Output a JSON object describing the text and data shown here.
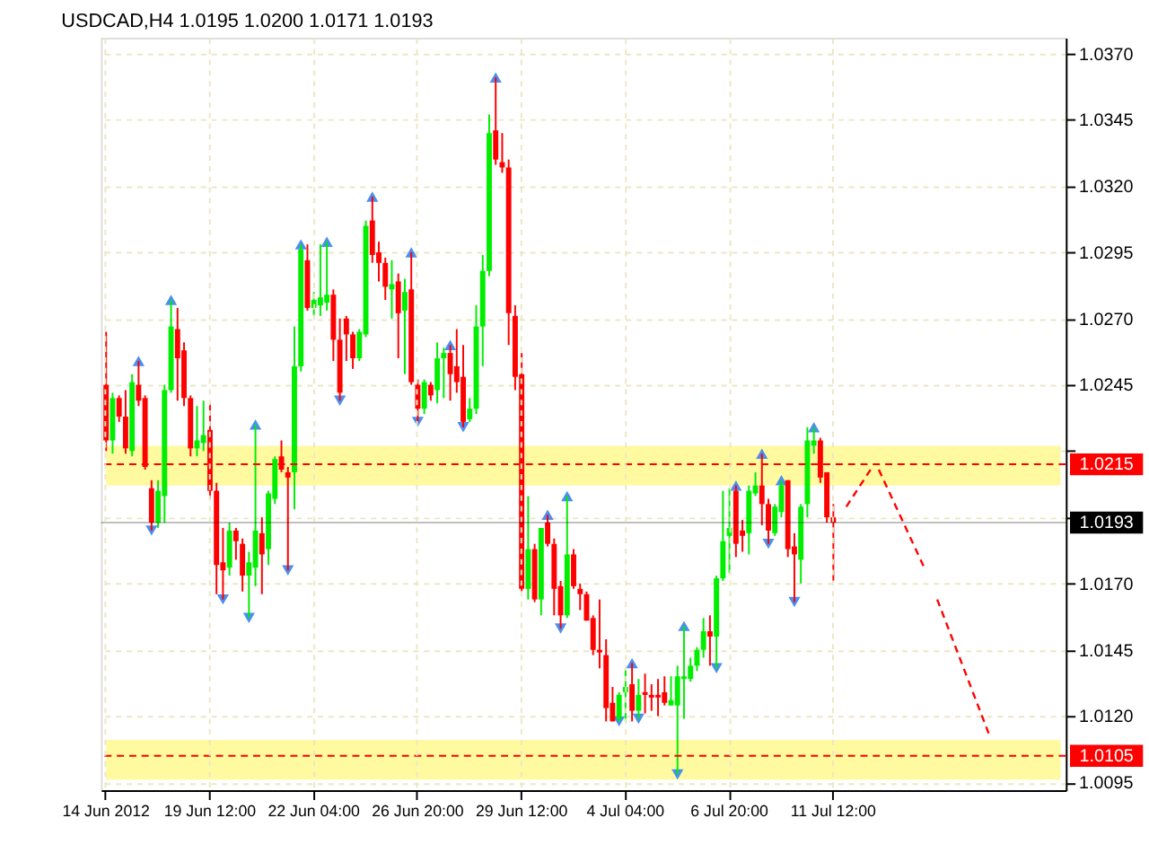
{
  "chart_data": {
    "type": "candlestick",
    "title": "USDCAD,H4  1.0195 1.0200 1.0171 1.0193",
    "categories": [
      "14 Jun 2012",
      null,
      null,
      null,
      null,
      null,
      null,
      null,
      null,
      null,
      null,
      null,
      null,
      null,
      null,
      null,
      "19 Jun 12:00",
      null,
      null,
      null,
      null,
      null,
      null,
      null,
      null,
      null,
      null,
      null,
      null,
      null,
      null,
      null,
      "22 Jun 04:00",
      null,
      null,
      null,
      null,
      null,
      null,
      null,
      null,
      null,
      null,
      null,
      null,
      null,
      null,
      null,
      "26 Jun 20:00",
      null,
      null,
      null,
      null,
      null,
      null,
      null,
      null,
      null,
      null,
      null,
      null,
      null,
      null,
      null,
      "29 Jun 12:00",
      null,
      null,
      null,
      null,
      null,
      null,
      null,
      null,
      null,
      null,
      null,
      null,
      null,
      null,
      null,
      "4 Jul 04:00",
      null,
      null,
      null,
      null,
      null,
      null,
      null,
      null,
      null,
      null,
      null,
      null,
      null,
      null,
      null,
      "6 Jul 20:00",
      null,
      null,
      null,
      null,
      null,
      null,
      null,
      null,
      null,
      null,
      null,
      null,
      null,
      null,
      null,
      "11 Jul 12:00",
      null,
      null,
      null,
      null,
      null,
      null,
      null,
      null,
      null,
      null,
      null,
      null,
      null,
      null,
      null,
      null,
      null,
      null,
      null,
      null,
      null,
      null,
      null,
      null,
      null,
      null,
      null,
      null,
      null,
      null,
      null,
      null,
      null,
      null,
      null
    ],
    "ohlc": [
      [
        1.0245,
        1.0265,
        1.022,
        1.0224
      ],
      [
        1.0224,
        1.0242,
        1.0219,
        1.024
      ],
      [
        1.024,
        1.0241,
        1.0231,
        1.0233
      ],
      [
        1.0233,
        1.0243,
        1.0219,
        1.0221
      ],
      [
        1.022,
        1.0249,
        1.0218,
        1.0246
      ],
      [
        1.0245,
        1.0254,
        1.0237,
        1.0239
      ],
      [
        1.024,
        1.0241,
        1.0213,
        1.0214
      ],
      [
        1.0206,
        1.0209,
        1.019,
        1.0193
      ],
      [
        1.0193,
        1.0209,
        1.0191,
        1.0205
      ],
      [
        1.0203,
        1.0245,
        1.0193,
        1.0243
      ],
      [
        1.0243,
        1.0277,
        1.0242,
        1.0267
      ],
      [
        1.0266,
        1.0274,
        1.0239,
        1.0255
      ],
      [
        1.0258,
        1.0261,
        1.0237,
        1.024
      ],
      [
        1.024,
        1.0241,
        1.0218,
        1.0221
      ],
      [
        1.0221,
        1.0237,
        1.0218,
        1.0224
      ],
      [
        1.0223,
        1.0239,
        1.022,
        1.0226
      ],
      [
        1.0228,
        1.0238,
        1.0202,
        1.0205
      ],
      [
        1.0205,
        1.0208,
        1.0166,
        1.0177
      ],
      [
        1.0178,
        1.0191,
        1.0164,
        1.0175
      ],
      [
        1.0176,
        1.0193,
        1.0173,
        1.019
      ],
      [
        1.019,
        1.0191,
        1.0179,
        1.0186
      ],
      [
        1.0185,
        1.0187,
        1.0167,
        1.0173
      ],
      [
        1.0173,
        1.0182,
        1.0157,
        1.0178
      ],
      [
        1.0176,
        1.023,
        1.0169,
        1.019
      ],
      [
        1.0189,
        1.0195,
        1.0166,
        1.0181
      ],
      [
        1.0183,
        1.0205,
        1.0177,
        1.0204
      ],
      [
        1.0202,
        1.0218,
        1.02,
        1.0217
      ],
      [
        1.0218,
        1.0224,
        1.0212,
        1.0213
      ],
      [
        1.0212,
        1.0214,
        1.0175,
        1.021
      ],
      [
        1.0212,
        1.0267,
        1.0198,
        1.0252
      ],
      [
        1.0252,
        1.0298,
        1.025,
        1.0296
      ],
      [
        1.0292,
        1.0298,
        1.0273,
        1.0274
      ],
      [
        1.0274,
        1.028,
        1.0271,
        1.0277
      ],
      [
        1.0275,
        1.0298,
        1.0271,
        1.0278
      ],
      [
        1.0276,
        1.0299,
        1.0273,
        1.0279
      ],
      [
        1.0279,
        1.0281,
        1.0254,
        1.0262
      ],
      [
        1.0262,
        1.027,
        1.0239,
        1.0242
      ],
      [
        1.027,
        1.0271,
        1.0254,
        1.0264
      ],
      [
        1.0264,
        1.0265,
        1.0251,
        1.0255
      ],
      [
        1.0255,
        1.0266,
        1.0254,
        1.0265
      ],
      [
        1.0264,
        1.0307,
        1.0263,
        1.0305
      ],
      [
        1.0307,
        1.0316,
        1.0291,
        1.0294
      ],
      [
        1.0295,
        1.0299,
        1.0284,
        1.0291
      ],
      [
        1.0291,
        1.0293,
        1.0277,
        1.0282
      ],
      [
        1.0281,
        1.0292,
        1.027,
        1.0283
      ],
      [
        1.0284,
        1.0287,
        1.0255,
        1.0272
      ],
      [
        1.0273,
        1.0285,
        1.0249,
        1.028
      ],
      [
        1.0281,
        1.0295,
        1.0245,
        1.0246
      ],
      [
        1.0245,
        1.0247,
        1.0231,
        1.0236
      ],
      [
        1.0236,
        1.0247,
        1.0234,
        1.0246
      ],
      [
        1.0245,
        1.0246,
        1.0239,
        1.0241
      ],
      [
        1.0243,
        1.0261,
        1.0238,
        1.0255
      ],
      [
        1.0255,
        1.0259,
        1.024,
        1.0257
      ],
      [
        1.0257,
        1.026,
        1.0239,
        1.0249
      ],
      [
        1.0252,
        1.0266,
        1.0242,
        1.0246
      ],
      [
        1.0248,
        1.026,
        1.0229,
        1.0231
      ],
      [
        1.0232,
        1.024,
        1.0231,
        1.0236
      ],
      [
        1.0236,
        1.0275,
        1.0234,
        1.0267
      ],
      [
        1.0267,
        1.0294,
        1.0252,
        1.0288
      ],
      [
        1.0288,
        1.0347,
        1.0286,
        1.034
      ],
      [
        1.0341,
        1.0361,
        1.0328,
        1.033
      ],
      [
        1.0329,
        1.034,
        1.0325,
        1.0327
      ],
      [
        1.0327,
        1.033,
        1.026,
        1.0272
      ],
      [
        1.0271,
        1.0275,
        1.0243,
        1.0248
      ],
      [
        1.0249,
        1.0257,
        1.0167,
        1.0168
      ],
      [
        1.0168,
        1.0203,
        1.0164,
        1.0183
      ],
      [
        1.0183,
        1.0185,
        1.0163,
        1.0164
      ],
      [
        1.0164,
        1.0191,
        1.0158,
        1.0191
      ],
      [
        1.0193,
        1.0196,
        1.0184,
        1.0185
      ],
      [
        1.0185,
        1.0187,
        1.0158,
        1.0168
      ],
      [
        1.0169,
        1.0171,
        1.0153,
        1.0158
      ],
      [
        1.0158,
        1.0203,
        1.0157,
        1.0181
      ],
      [
        1.0181,
        1.0183,
        1.0168,
        1.0169
      ],
      [
        1.0168,
        1.017,
        1.016,
        1.0166
      ],
      [
        1.0166,
        1.0167,
        1.0156,
        1.0156
      ],
      [
        1.0157,
        1.0158,
        1.0143,
        1.0145
      ],
      [
        1.0145,
        1.0164,
        1.0138,
        1.0144
      ],
      [
        1.0143,
        1.0149,
        1.0118,
        1.0123
      ],
      [
        1.0125,
        1.0131,
        1.0118,
        1.0118
      ],
      [
        1.0119,
        1.0129,
        1.0118,
        1.0128
      ],
      [
        1.0129,
        1.0138,
        1.0118,
        1.0131
      ],
      [
        1.0132,
        1.014,
        1.0118,
        1.0122
      ],
      [
        1.0122,
        1.0134,
        1.0119,
        1.0128
      ],
      [
        1.0129,
        1.0136,
        1.0121,
        1.0128
      ],
      [
        1.0128,
        1.0132,
        1.0122,
        1.0127
      ],
      [
        1.0128,
        1.0134,
        1.012,
        1.0127
      ],
      [
        1.0129,
        1.0135,
        1.0124,
        1.0125
      ],
      [
        1.0124,
        1.0135,
        1.0124,
        1.0126
      ],
      [
        1.0124,
        1.0139,
        1.0098,
        1.0135
      ],
      [
        1.0134,
        1.0154,
        1.0119,
        1.0135
      ],
      [
        1.0134,
        1.0142,
        1.0133,
        1.0139
      ],
      [
        1.0139,
        1.0146,
        1.0137,
        1.0145
      ],
      [
        1.0145,
        1.0157,
        1.0142,
        1.0152
      ],
      [
        1.0152,
        1.0158,
        1.0139,
        1.015
      ],
      [
        1.015,
        1.0173,
        1.0138,
        1.0172
      ],
      [
        1.0172,
        1.0205,
        1.0171,
        1.0186
      ],
      [
        1.0188,
        1.0206,
        1.0174,
        1.0191
      ],
      [
        1.0205,
        1.0207,
        1.018,
        1.0185
      ],
      [
        1.019,
        1.0194,
        1.0182,
        1.0188
      ],
      [
        1.0189,
        1.0207,
        1.0181,
        1.0205
      ],
      [
        1.0204,
        1.0212,
        1.0203,
        1.0207
      ],
      [
        1.0207,
        1.0219,
        1.0192,
        1.02
      ],
      [
        1.02,
        1.0202,
        1.0185,
        1.019
      ],
      [
        1.0189,
        1.02,
        1.0188,
        1.0199
      ],
      [
        1.0197,
        1.0209,
        1.0195,
        1.0207
      ],
      [
        1.0209,
        1.0209,
        1.018,
        1.0183
      ],
      [
        1.0184,
        1.0189,
        1.0163,
        1.0181
      ],
      [
        1.0179,
        1.02,
        1.017,
        1.0199
      ],
      [
        1.02,
        1.0229,
        1.0195,
        1.0224
      ],
      [
        1.0222,
        1.0229,
        1.0219,
        1.0224
      ],
      [
        1.0224,
        1.0225,
        1.0208,
        1.021
      ],
      [
        1.0212,
        1.0212,
        1.0193,
        1.0195
      ],
      [
        1.0195,
        1.02,
        1.0171,
        1.0193
      ],
      null,
      null,
      null,
      null,
      null,
      null,
      null,
      null,
      null,
      null,
      null,
      null,
      null,
      null,
      null,
      null,
      null,
      null,
      null,
      null,
      null,
      null,
      null,
      null,
      null,
      null,
      null,
      null,
      null,
      null,
      null,
      null,
      null,
      null,
      null
    ],
    "colors": [
      "#ff0000",
      "#00ee00",
      "#ff0000",
      "#ff0000",
      "#00ee00",
      "#ff0000",
      "#ff0000",
      "#ff0000",
      "#00ee00",
      "#00ee00",
      "#00ee00",
      "#ff0000",
      "#ff0000",
      "#ff0000",
      "#00ee00",
      "#00ee00",
      "#ff0000",
      "#ff0000",
      "#ff0000",
      "#00ee00",
      "#ff0000",
      "#ff0000",
      "#00ee00",
      "#00ee00",
      "#ff0000",
      "#00ee00",
      "#00ee00",
      "#ff0000",
      "#ff0000",
      "#00ee00",
      "#00ee00",
      "#ff0000",
      "#00ee00",
      "#00ee00",
      "#00ee00",
      "#ff0000",
      "#ff0000",
      "#ff0000",
      "#ff0000",
      "#00ee00",
      "#00ee00",
      "#ff0000",
      "#ff0000",
      "#ff0000",
      "#00ee00",
      "#ff0000",
      "#00ee00",
      "#ff0000",
      "#ff0000",
      "#00ee00",
      "#ff0000",
      "#00ee00",
      "#00ee00",
      "#ff0000",
      "#ff0000",
      "#ff0000",
      "#00ee00",
      "#00ee00",
      "#00ee00",
      "#00ee00",
      "#ff0000",
      "#ff0000",
      "#ff0000",
      "#ff0000",
      "#ff0000",
      "#00ee00",
      "#ff0000",
      "#00ee00",
      "#ff0000",
      "#ff0000",
      "#ff0000",
      "#00ee00",
      "#ff0000",
      "#ff0000",
      "#ff0000",
      "#ff0000",
      "#ff0000",
      "#ff0000",
      "#ff0000",
      "#00ee00",
      "#00ee00",
      "#ff0000",
      "#00ee00",
      "#ff0000",
      "#ff0000",
      "#ff0000",
      "#ff0000",
      "#00ee00",
      "#00ee00",
      "#00ee00",
      "#00ee00",
      "#00ee00",
      "#00ee00",
      "#ff0000",
      "#00ee00",
      "#00ee00",
      "#00ee00",
      "#ff0000",
      "#ff0000",
      "#00ee00",
      "#00ee00",
      "#ff0000",
      "#ff0000",
      "#00ee00",
      "#00ee00",
      "#ff0000",
      "#ff0000",
      "#00ee00",
      "#00ee00",
      "#00ee00",
      "#ff0000",
      "#ff0000",
      "#ff0000",
      null,
      null,
      null,
      null,
      null,
      null,
      null,
      null,
      null,
      null,
      null,
      null,
      null,
      null,
      null,
      null,
      null,
      null,
      null,
      null,
      null,
      null,
      null,
      null,
      null,
      null,
      null,
      null,
      null,
      null,
      null,
      null,
      null,
      null,
      null
    ],
    "series": [
      {
        "type": "scatter",
        "marker": "triangle",
        "color": "#4a8ff0",
        "values": [
          null,
          null,
          null,
          null,
          null,
          1.0254,
          null,
          null,
          null,
          null,
          1.0277,
          null,
          null,
          null,
          null,
          null,
          null,
          null,
          null,
          null,
          null,
          null,
          null,
          1.023,
          null,
          null,
          null,
          null,
          null,
          null,
          1.0298,
          null,
          null,
          null,
          1.0299,
          null,
          null,
          null,
          null,
          null,
          null,
          1.0316,
          null,
          null,
          null,
          null,
          null,
          1.0295,
          null,
          null,
          null,
          null,
          null,
          1.026,
          null,
          null,
          null,
          null,
          null,
          null,
          1.0361,
          null,
          null,
          null,
          null,
          null,
          null,
          null,
          1.0196,
          null,
          null,
          1.0203,
          null,
          null,
          null,
          null,
          null,
          null,
          null,
          null,
          null,
          1.014,
          null,
          null,
          null,
          null,
          null,
          null,
          null,
          1.0154,
          null,
          null,
          null,
          null,
          null,
          null,
          null,
          1.0207,
          null,
          null,
          null,
          1.0219,
          null,
          null,
          1.0209,
          null,
          null,
          null,
          null,
          1.0229,
          null,
          null,
          null,
          null,
          null,
          null,
          null,
          null,
          null,
          null,
          null,
          null,
          null,
          null,
          null,
          null,
          null,
          null,
          null,
          null,
          null,
          null,
          null,
          null,
          null,
          null,
          null,
          null,
          null,
          null,
          null,
          null,
          null,
          null,
          null,
          null,
          null,
          null
        ]
      },
      {
        "type": "scatter",
        "marker": "triangle",
        "color": "#4a8ff0",
        "values": [
          null,
          null,
          null,
          null,
          null,
          null,
          null,
          1.019,
          null,
          null,
          null,
          null,
          null,
          null,
          null,
          null,
          null,
          null,
          1.0164,
          null,
          null,
          null,
          1.0157,
          null,
          null,
          null,
          null,
          null,
          1.0175,
          null,
          null,
          null,
          null,
          null,
          null,
          null,
          1.0239,
          null,
          null,
          null,
          null,
          null,
          null,
          null,
          null,
          null,
          null,
          null,
          1.0231,
          null,
          null,
          null,
          null,
          null,
          null,
          1.0229,
          null,
          null,
          null,
          null,
          null,
          null,
          null,
          null,
          null,
          null,
          null,
          null,
          null,
          null,
          1.0153,
          null,
          null,
          null,
          null,
          null,
          null,
          null,
          null,
          1.0118,
          null,
          null,
          1.0119,
          null,
          null,
          null,
          null,
          null,
          1.0098,
          null,
          null,
          null,
          null,
          null,
          1.0138,
          null,
          null,
          null,
          null,
          null,
          null,
          null,
          1.0185,
          null,
          null,
          null,
          1.0163,
          null,
          null,
          null,
          null,
          null,
          null,
          null,
          null,
          null,
          null,
          null,
          null,
          null,
          null,
          null,
          null,
          null,
          null,
          null,
          null,
          null,
          null,
          null,
          null,
          null,
          null,
          null,
          null,
          null,
          null,
          null,
          null,
          null,
          null,
          null,
          null,
          null,
          null,
          null,
          null,
          null
        ]
      },
      {
        "type": "line",
        "line_style": "dashed",
        "color": "#ff0000",
        "values": [
          null,
          null,
          null,
          null,
          null,
          null,
          null,
          null,
          null,
          null,
          null,
          null,
          null,
          null,
          null,
          null,
          null,
          null,
          null,
          null,
          null,
          null,
          null,
          null,
          null,
          null,
          null,
          null,
          null,
          null,
          null,
          null,
          null,
          null,
          null,
          null,
          null,
          null,
          null,
          null,
          null,
          null,
          null,
          null,
          null,
          null,
          null,
          null,
          null,
          null,
          null,
          null,
          null,
          null,
          null,
          null,
          null,
          null,
          null,
          null,
          null,
          null,
          null,
          null,
          null,
          null,
          null,
          null,
          null,
          null,
          null,
          null,
          null,
          null,
          null,
          null,
          null,
          null,
          null,
          null,
          null,
          null,
          null,
          null,
          null,
          null,
          null,
          null,
          null,
          null,
          null,
          null,
          null,
          null,
          null,
          null,
          null,
          null,
          null,
          null,
          null,
          null,
          null,
          null,
          null,
          null,
          null,
          null,
          null,
          null,
          null,
          null,
          null,
          null,
          1.0199,
          null,
          null,
          null,
          1.0214,
          null,
          null,
          null,
          null,
          null,
          null,
          null,
          null,
          null,
          null,
          null,
          null,
          null,
          null,
          null,
          null,
          null,
          null,
          null,
          null,
          null,
          null,
          null,
          null,
          null,
          null,
          null,
          null,
          null
        ]
      },
      {
        "type": "line",
        "line_style": "dashed",
        "color": "#ff0000",
        "values": [
          null,
          null,
          null,
          null,
          null,
          null,
          null,
          null,
          null,
          null,
          null,
          null,
          null,
          null,
          null,
          null,
          null,
          null,
          null,
          null,
          null,
          null,
          null,
          null,
          null,
          null,
          null,
          null,
          null,
          null,
          null,
          null,
          null,
          null,
          null,
          null,
          null,
          null,
          null,
          null,
          null,
          null,
          null,
          null,
          null,
          null,
          null,
          null,
          null,
          null,
          null,
          null,
          null,
          null,
          null,
          null,
          null,
          null,
          null,
          null,
          null,
          null,
          null,
          null,
          null,
          null,
          null,
          null,
          null,
          null,
          null,
          null,
          null,
          null,
          null,
          null,
          null,
          null,
          null,
          null,
          null,
          null,
          null,
          null,
          null,
          null,
          null,
          null,
          null,
          null,
          null,
          null,
          null,
          null,
          null,
          null,
          null,
          null,
          null,
          null,
          null,
          null,
          null,
          null,
          null,
          null,
          null,
          null,
          null,
          null,
          null,
          null,
          null,
          null,
          null,
          null,
          null,
          null,
          null,
          1.0213,
          null,
          null,
          null,
          null,
          null,
          null,
          1.0176,
          null,
          null,
          null,
          null,
          null,
          null,
          null,
          null,
          null,
          null,
          null,
          null,
          null,
          null,
          null,
          null,
          null,
          null,
          null,
          null,
          null
        ]
      },
      {
        "type": "line",
        "line_style": "dashed",
        "color": "#ff0000",
        "values": [
          null,
          null,
          null,
          null,
          null,
          null,
          null,
          null,
          null,
          null,
          null,
          null,
          null,
          null,
          null,
          null,
          null,
          null,
          null,
          null,
          null,
          null,
          null,
          null,
          null,
          null,
          null,
          null,
          null,
          null,
          null,
          null,
          null,
          null,
          null,
          null,
          null,
          null,
          null,
          null,
          null,
          null,
          null,
          null,
          null,
          null,
          null,
          null,
          null,
          null,
          null,
          null,
          null,
          null,
          null,
          null,
          null,
          null,
          null,
          null,
          null,
          null,
          null,
          null,
          null,
          null,
          null,
          null,
          null,
          null,
          null,
          null,
          null,
          null,
          null,
          null,
          null,
          null,
          null,
          null,
          null,
          null,
          null,
          null,
          null,
          null,
          null,
          null,
          null,
          null,
          null,
          null,
          null,
          null,
          null,
          null,
          null,
          null,
          null,
          null,
          null,
          null,
          null,
          null,
          null,
          null,
          null,
          null,
          null,
          null,
          null,
          null,
          null,
          null,
          null,
          null,
          null,
          null,
          null,
          null,
          null,
          null,
          null,
          null,
          null,
          null,
          null,
          null,
          1.0164,
          null,
          null,
          null,
          null,
          null,
          null,
          null,
          1.0113,
          null,
          null,
          null,
          null,
          null,
          null,
          null,
          null,
          null,
          null,
          null
        ]
      }
    ],
    "ylim": [
      1.0092,
      1.0376
    ],
    "yticks": [
      1.0095,
      {
        "value": 1.012,
        "label": "1.0120"
      },
      1.0145,
      {
        "value": 1.017,
        "label": "1.0170"
      },
      {
        "value": 1.0195,
        "label": null
      },
      {
        "value": 1.022,
        "label": null
      },
      1.0245,
      {
        "value": 1.027,
        "label": "1.0270"
      },
      1.0295,
      {
        "value": 1.032,
        "label": "1.0320"
      },
      1.0345,
      {
        "value": 1.037,
        "label": "1.0370"
      }
    ],
    "grid": true,
    "ref_lines": [
      {
        "axis": "y",
        "value": 1.0215,
        "label": "1.0215",
        "color": "#ff0000",
        "line_style": "dashed"
      },
      {
        "axis": "y",
        "value": 1.0105,
        "label": "1.0105",
        "color": "#ff0000",
        "line_style": "dashed"
      },
      {
        "axis": "y",
        "value": 1.0193,
        "label": "1.0193",
        "color": "#000000",
        "line_style": "solid"
      }
    ],
    "bands": [
      {
        "axis": "y",
        "from": 1.0207,
        "to": 1.0222,
        "color": "#fffaa0"
      },
      {
        "axis": "y",
        "from": 1.0096,
        "to": 1.0111,
        "color": "#fffaa0"
      }
    ]
  }
}
